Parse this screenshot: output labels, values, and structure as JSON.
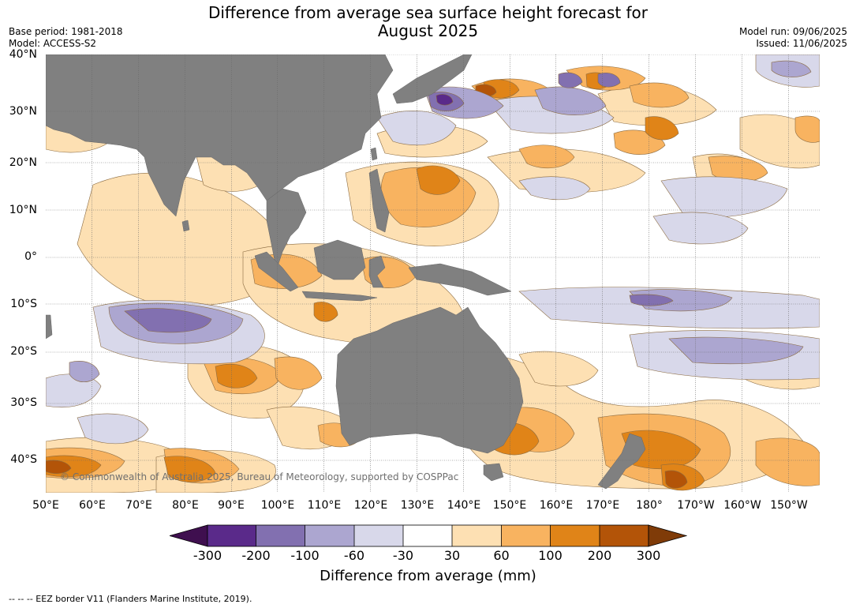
{
  "header": {
    "title_line1": "Difference from average sea surface height forecast for",
    "title_line2": "August 2025",
    "base_period": "Base period: 1981-2018",
    "model": "Model: ACCESS-S2",
    "model_run": "Model run: 09/06/2025",
    "issued": "Issued: 11/06/2025"
  },
  "map": {
    "lat_labels": [
      "40°N",
      "30°N",
      "20°N",
      "10°N",
      "0°",
      "10°S",
      "20°S",
      "30°S",
      "40°S"
    ],
    "lon_labels": [
      "50°E",
      "60°E",
      "70°E",
      "80°E",
      "90°E",
      "100°E",
      "110°E",
      "120°E",
      "130°E",
      "140°E",
      "150°E",
      "160°E",
      "170°E",
      "180°",
      "170°W",
      "160°W",
      "150°W"
    ],
    "land_color": "#808080",
    "ocean_color": "#ffffff",
    "copyright": "© Commonwealth of Australia 2025, Bureau of Meteorology, supported by COSPPac"
  },
  "colorbar": {
    "labels": [
      "-300",
      "-200",
      "-100",
      "-60",
      "-30",
      "30",
      "60",
      "100",
      "200",
      "300"
    ],
    "colors": [
      "#3f0f4f",
      "#5a2a8a",
      "#8270b0",
      "#aca6d0",
      "#d8d8ea",
      "#ffffff",
      "#fde0b3",
      "#f8b360",
      "#e08418",
      "#b35408",
      "#7f3b08"
    ],
    "title": "Difference from average (mm)"
  },
  "footer": {
    "text": "--  --  -- EEZ border V11 (Flanders Marine Institute, 2019)."
  }
}
